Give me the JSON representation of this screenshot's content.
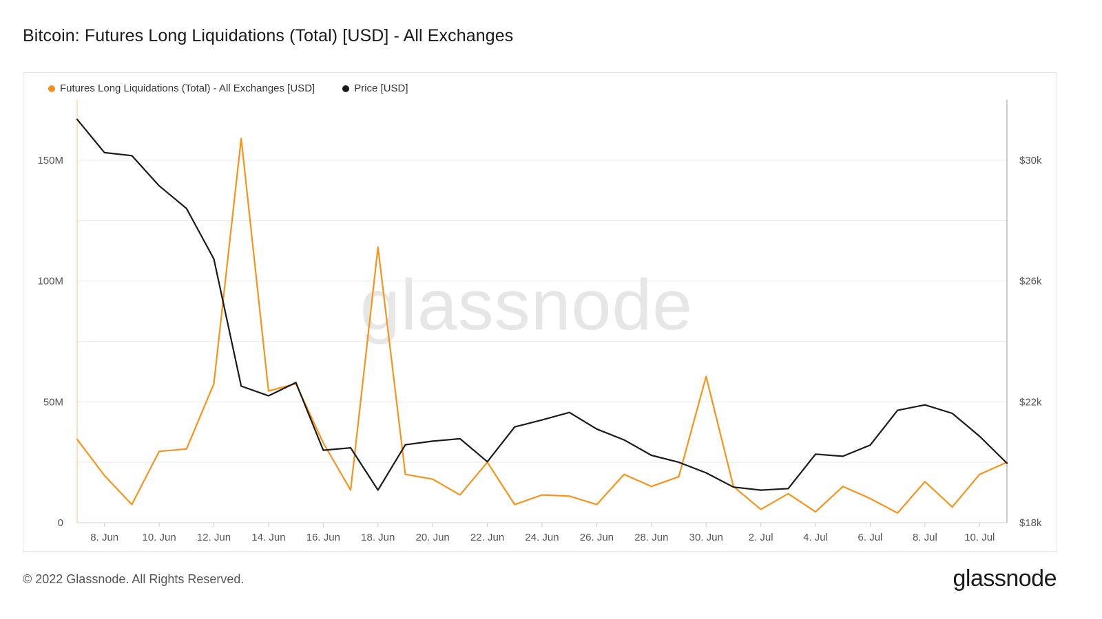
{
  "title": "Bitcoin: Futures Long Liquidations (Total) [USD] - All Exchanges",
  "footer": "© 2022 Glassnode. All Rights Reserved.",
  "brand": "glassnode",
  "watermark": "glassnode",
  "chart_data": {
    "type": "line",
    "legend": [
      {
        "label": "Futures Long Liquidations (Total) - All Exchanges [USD]",
        "color": "#f7931a"
      },
      {
        "label": "Price [USD]",
        "color": "#1a1a1a"
      }
    ],
    "x": [
      "7 Jun",
      "8 Jun",
      "9 Jun",
      "10 Jun",
      "11 Jun",
      "12 Jun",
      "13 Jun",
      "14 Jun",
      "15 Jun",
      "16 Jun",
      "17 Jun",
      "18 Jun",
      "19 Jun",
      "20 Jun",
      "21 Jun",
      "22 Jun",
      "23 Jun",
      "24 Jun",
      "25 Jun",
      "26 Jun",
      "27 Jun",
      "28 Jun",
      "29 Jun",
      "30 Jun",
      "1 Jul",
      "2 Jul",
      "3 Jul",
      "4 Jul",
      "5 Jul",
      "6 Jul",
      "7 Jul",
      "8 Jul",
      "9 Jul",
      "10 Jul",
      "11 Jul"
    ],
    "x_tick_labels": [
      "8. Jun",
      "10. Jun",
      "12. Jun",
      "14. Jun",
      "16. Jun",
      "18. Jun",
      "20. Jun",
      "22. Jun",
      "24. Jun",
      "26. Jun",
      "28. Jun",
      "30. Jun",
      "2. Jul",
      "4. Jul",
      "6. Jul",
      "8. Jul",
      "10. Jul"
    ],
    "y_left": {
      "ticks": [
        0,
        50,
        100,
        150
      ],
      "tick_labels": [
        "0",
        "50M",
        "100M",
        "150M"
      ],
      "range": [
        0,
        175
      ],
      "unit": "M USD"
    },
    "y_right": {
      "ticks": [
        18000,
        22000,
        26000,
        30000
      ],
      "tick_labels": [
        "$18k",
        "$22k",
        "$26k",
        "$30k"
      ],
      "range": [
        18000,
        32000
      ],
      "unit": "USD"
    },
    "grid": true,
    "legend_position": "top-left",
    "series": [
      {
        "name": "Futures Long Liquidations (Total) - All Exchanges [USD]",
        "axis": "left",
        "color": "#f7931a",
        "values": [
          34.5,
          19.5,
          7.5,
          29.5,
          30.5,
          57.5,
          159,
          54.5,
          57.5,
          33,
          13.5,
          114,
          20,
          18,
          11.5,
          25,
          7.5,
          11.5,
          11,
          7.5,
          20,
          15,
          19,
          60.5,
          15,
          5.5,
          12,
          4.5,
          15,
          10,
          4,
          17,
          6.5,
          20,
          25
        ]
      },
      {
        "name": "Price [USD]",
        "axis": "right",
        "color": "#1a1a1a",
        "values": [
          31350,
          30250,
          30150,
          29150,
          28400,
          26730,
          22520,
          22200,
          22640,
          20400,
          20480,
          19080,
          20580,
          20700,
          20780,
          20020,
          21170,
          21400,
          21650,
          21100,
          20740,
          20230,
          20000,
          19650,
          19180,
          19080,
          19130,
          20270,
          20200,
          20570,
          21720,
          21900,
          21620,
          20860,
          19970
        ]
      }
    ]
  }
}
